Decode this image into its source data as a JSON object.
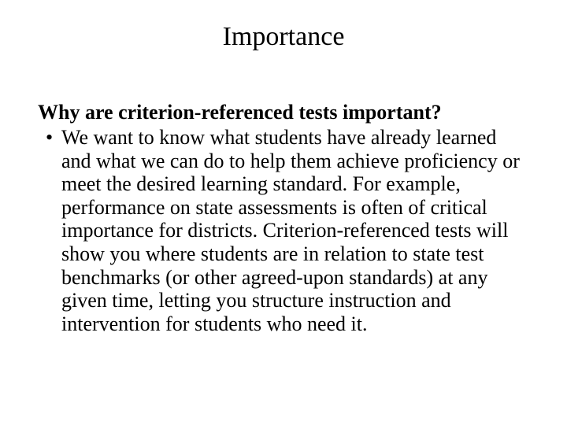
{
  "slide": {
    "title": "Importance",
    "subheading": "Why are criterion-referenced tests important?",
    "bullets": [
      "We want to know what students have already learned and what we can do to help them achieve proficiency or meet the desired learning standard. For example, performance on state assessments is often of critical importance for districts. Criterion-referenced tests will show you where students are in relation to state test benchmarks (or other agreed-upon standards) at any given time, letting you structure instruction and intervention for students who need it."
    ],
    "background_color": "#ffffff",
    "text_color": "#000000",
    "title_fontsize": 34,
    "body_fontsize": 26,
    "font_family": "Times New Roman"
  }
}
